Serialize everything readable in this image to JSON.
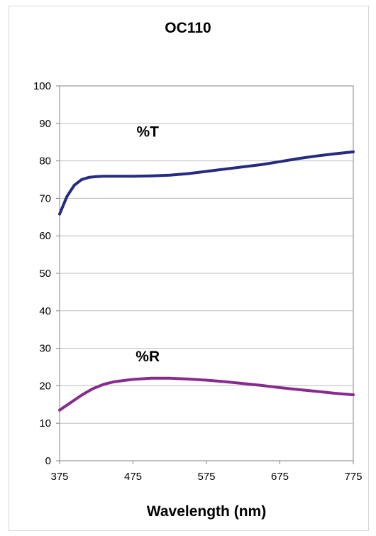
{
  "chart_data": {
    "type": "line",
    "title": "OC110",
    "xlabel": "Wavelength (nm)",
    "ylabel": "",
    "xlim": [
      375,
      775
    ],
    "ylim": [
      0,
      100
    ],
    "x_ticks": [
      375,
      475,
      575,
      675,
      775
    ],
    "y_ticks": [
      0,
      10,
      20,
      30,
      40,
      50,
      60,
      70,
      80,
      90,
      100
    ],
    "grid": "horizontal",
    "legend": "none",
    "series": [
      {
        "name": "%T",
        "color": "#262a80",
        "x": [
          375,
          385,
          395,
          405,
          415,
          425,
          435,
          450,
          475,
          500,
          525,
          550,
          575,
          600,
          625,
          650,
          675,
          700,
          725,
          750,
          775
        ],
        "y": [
          65.8,
          70.5,
          73.5,
          75.0,
          75.6,
          75.8,
          75.9,
          75.9,
          75.9,
          76.0,
          76.2,
          76.6,
          77.2,
          77.8,
          78.4,
          79.0,
          79.8,
          80.6,
          81.3,
          81.9,
          82.4
        ]
      },
      {
        "name": "%R",
        "color": "#872c8f",
        "x": [
          375,
          390,
          405,
          420,
          435,
          450,
          475,
          500,
          525,
          550,
          575,
          600,
          625,
          650,
          675,
          700,
          725,
          750,
          775
        ],
        "y": [
          13.5,
          15.5,
          17.5,
          19.2,
          20.4,
          21.1,
          21.7,
          22.0,
          22.0,
          21.8,
          21.5,
          21.1,
          20.6,
          20.1,
          19.5,
          19.0,
          18.5,
          18.0,
          17.6
        ]
      }
    ],
    "series_labels": [
      {
        "text": "%T",
        "x": 495,
        "y": 86.5
      },
      {
        "text": "%R",
        "x": 495,
        "y": 26.5
      }
    ]
  }
}
